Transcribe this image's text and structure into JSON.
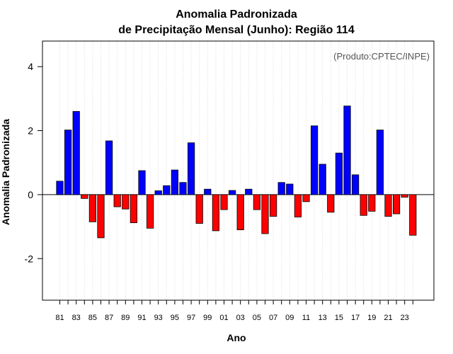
{
  "chart_data": {
    "type": "bar",
    "title": "Anomalia Padronizada",
    "subtitle": "de Precipitação Mensal (Junho): Região 114",
    "xlabel": "Ano",
    "ylabel": "Anomalia Padronizada",
    "source": "(Produto:CPTEC/INPE)",
    "ylim": [
      -3.3,
      4.8
    ],
    "yticks": [
      "-2",
      "0",
      "2",
      "4"
    ],
    "ytick_values": [
      -2,
      0,
      2,
      4
    ],
    "xtick_labels": [
      "81",
      "83",
      "85",
      "87",
      "89",
      "91",
      "93",
      "95",
      "97",
      "99",
      "01",
      "03",
      "05",
      "07",
      "09",
      "11",
      "13",
      "15",
      "17",
      "19",
      "21",
      "23"
    ],
    "grid": "vertical-dotted",
    "colors": {
      "positive": "#0000ff",
      "negative": "#ff0000",
      "outline": "#000000",
      "grid": "#d9d9d9"
    },
    "categories": [
      "1981",
      "1982",
      "1983",
      "1984",
      "1985",
      "1986",
      "1987",
      "1988",
      "1989",
      "1990",
      "1991",
      "1992",
      "1993",
      "1994",
      "1995",
      "1996",
      "1997",
      "1998",
      "1999",
      "2000",
      "2001",
      "2002",
      "2003",
      "2004",
      "2005",
      "2006",
      "2007",
      "2008",
      "2009",
      "2010",
      "2011",
      "2012",
      "2013",
      "2014",
      "2015",
      "2016",
      "2017",
      "2018",
      "2019",
      "2020",
      "2021",
      "2022",
      "2023",
      "2024"
    ],
    "values": [
      0.42,
      2.02,
      2.6,
      -0.12,
      -0.85,
      -1.35,
      1.68,
      -0.38,
      -0.45,
      -0.88,
      0.75,
      -1.05,
      0.12,
      0.28,
      0.77,
      0.38,
      1.62,
      -0.9,
      0.17,
      -1.13,
      -0.47,
      0.13,
      -1.1,
      0.17,
      -0.47,
      -1.22,
      -0.68,
      0.38,
      0.33,
      -0.7,
      -0.22,
      2.15,
      0.95,
      -0.55,
      1.3,
      2.77,
      0.62,
      -0.65,
      -0.52,
      2.02,
      -0.68,
      -0.6,
      -0.08,
      -1.27
    ]
  }
}
